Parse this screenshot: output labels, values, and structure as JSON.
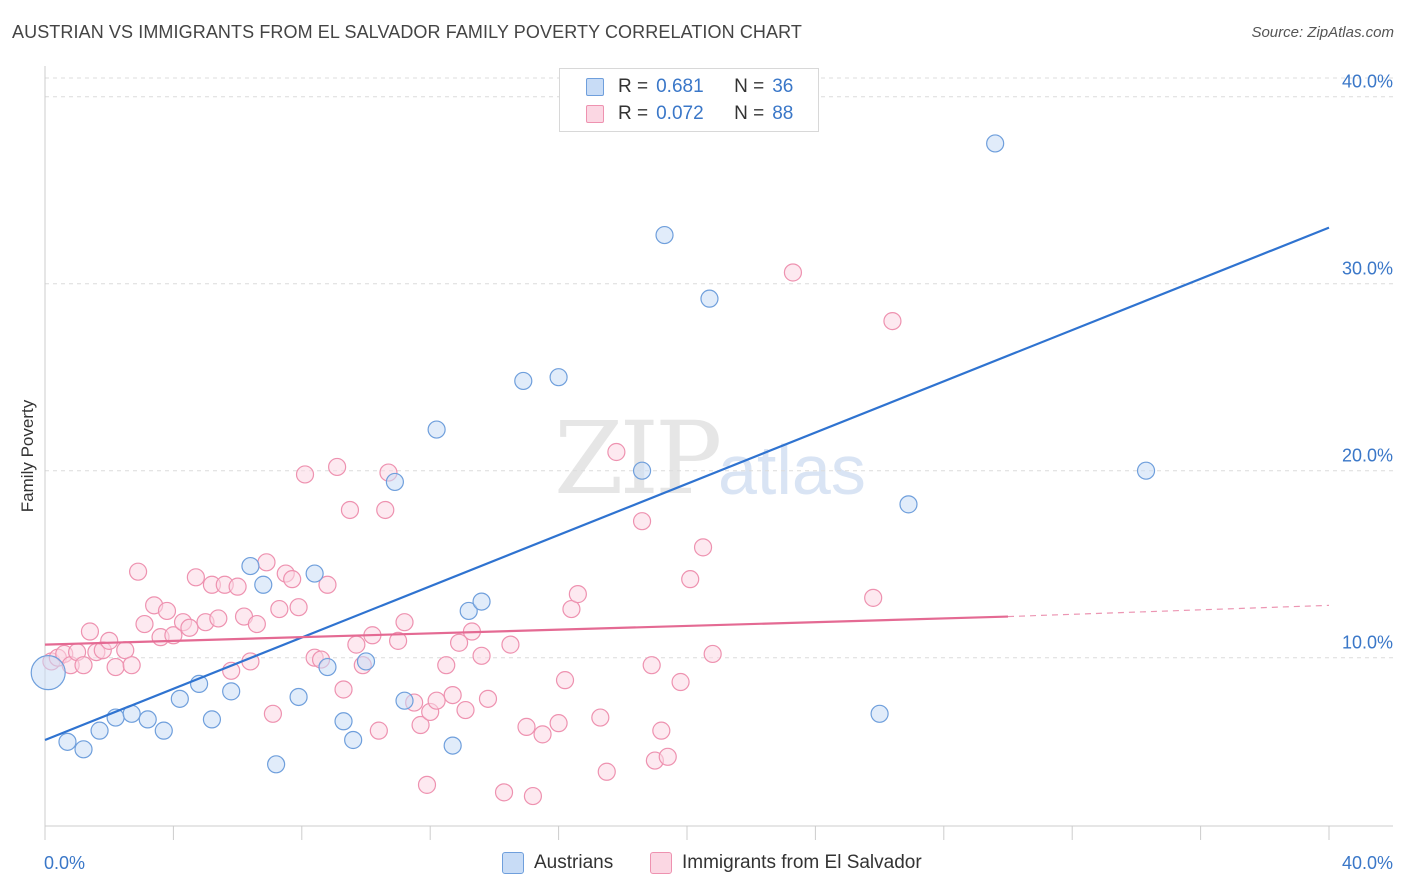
{
  "title": "AUSTRIAN VS IMMIGRANTS FROM EL SALVADOR FAMILY POVERTY CORRELATION CHART",
  "source": "Source: ZipAtlas.com",
  "watermark": {
    "zip": "ZIP",
    "atlas": "atlas"
  },
  "legend_top": {
    "rows": [
      {
        "r_label": "R =",
        "r_value": "0.681",
        "n_label": "N =",
        "n_value": "36",
        "color": "#aac8f0",
        "border": "#6f9fdc"
      },
      {
        "r_label": "R =",
        "r_value": "0.072",
        "n_label": "N =",
        "n_value": "88",
        "color": "#f8c6d6",
        "border": "#ee92b0"
      }
    ]
  },
  "legend_bottom": {
    "items": [
      {
        "label": "Austrians",
        "color": "#c8dcf6",
        "border": "#6f9fdc"
      },
      {
        "label": "Immigrants from El Salvador",
        "color": "#fbd7e3",
        "border": "#ee92b0"
      }
    ]
  },
  "chart_data": {
    "type": "scatter",
    "title": "AUSTRIAN VS IMMIGRANTS FROM EL SALVADOR FAMILY POVERTY CORRELATION CHART",
    "xlabel": "",
    "ylabel": "Family Poverty",
    "xlim": [
      0,
      40
    ],
    "ylim": [
      1,
      41
    ],
    "x_tick_labels": [
      "0.0%",
      "40.0%"
    ],
    "y_ticks": [
      10,
      20,
      30,
      40
    ],
    "y_tick_labels": [
      "10.0%",
      "20.0%",
      "30.0%",
      "40.0%"
    ],
    "grid": "horizontal dashed",
    "legend": "top-center",
    "series": [
      {
        "name": "Austrians",
        "color": "#6f9fdc",
        "fill": "#c8dcf6",
        "trend": {
          "x": [
            0,
            40
          ],
          "y": [
            5.6,
            33.0
          ],
          "color": "#2f73d0"
        },
        "points": [
          [
            0.1,
            9.2
          ],
          [
            0.7,
            5.5
          ],
          [
            1.2,
            5.1
          ],
          [
            1.7,
            6.1
          ],
          [
            2.2,
            6.8
          ],
          [
            2.7,
            7.0
          ],
          [
            3.2,
            6.7
          ],
          [
            3.7,
            6.1
          ],
          [
            4.2,
            7.8
          ],
          [
            4.8,
            8.6
          ],
          [
            5.2,
            6.7
          ],
          [
            5.8,
            8.2
          ],
          [
            6.4,
            14.9
          ],
          [
            6.8,
            13.9
          ],
          [
            7.2,
            4.3
          ],
          [
            7.9,
            7.9
          ],
          [
            8.4,
            14.5
          ],
          [
            8.8,
            9.5
          ],
          [
            9.3,
            6.6
          ],
          [
            9.6,
            5.6
          ],
          [
            10.0,
            9.8
          ],
          [
            10.9,
            19.4
          ],
          [
            11.2,
            7.7
          ],
          [
            12.2,
            22.2
          ],
          [
            12.7,
            5.3
          ],
          [
            13.2,
            12.5
          ],
          [
            13.6,
            13.0
          ],
          [
            14.9,
            24.8
          ],
          [
            16.0,
            25.0
          ],
          [
            18.6,
            20.0
          ],
          [
            19.3,
            32.6
          ],
          [
            20.7,
            29.2
          ],
          [
            26.0,
            7.0
          ],
          [
            26.9,
            18.2
          ],
          [
            29.6,
            37.5
          ],
          [
            34.3,
            20.0
          ]
        ]
      },
      {
        "name": "Immigrants from El Salvador",
        "color": "#ee92b0",
        "fill": "#fbd7e3",
        "trend": {
          "x": [
            0,
            30
          ],
          "y": [
            10.7,
            12.2
          ],
          "dashed_to": [
            40,
            12.8
          ],
          "color": "#e46a93"
        },
        "points": [
          [
            0.2,
            9.8
          ],
          [
            0.4,
            10.0
          ],
          [
            0.6,
            10.2
          ],
          [
            0.8,
            9.6
          ],
          [
            1.0,
            10.3
          ],
          [
            1.2,
            9.6
          ],
          [
            1.4,
            11.4
          ],
          [
            1.6,
            10.3
          ],
          [
            1.8,
            10.4
          ],
          [
            2.0,
            10.9
          ],
          [
            2.2,
            9.5
          ],
          [
            2.5,
            10.4
          ],
          [
            2.7,
            9.6
          ],
          [
            2.9,
            14.6
          ],
          [
            3.1,
            11.8
          ],
          [
            3.4,
            12.8
          ],
          [
            3.6,
            11.1
          ],
          [
            3.8,
            12.5
          ],
          [
            4.0,
            11.2
          ],
          [
            4.3,
            11.9
          ],
          [
            4.5,
            11.6
          ],
          [
            4.7,
            14.3
          ],
          [
            5.0,
            11.9
          ],
          [
            5.2,
            13.9
          ],
          [
            5.4,
            12.1
          ],
          [
            5.6,
            13.9
          ],
          [
            5.8,
            9.3
          ],
          [
            6.0,
            13.8
          ],
          [
            6.2,
            12.2
          ],
          [
            6.4,
            9.8
          ],
          [
            6.6,
            11.8
          ],
          [
            6.9,
            15.1
          ],
          [
            7.1,
            7.0
          ],
          [
            7.3,
            12.6
          ],
          [
            7.5,
            14.5
          ],
          [
            7.7,
            14.2
          ],
          [
            7.9,
            12.7
          ],
          [
            8.1,
            19.8
          ],
          [
            8.4,
            10.0
          ],
          [
            8.6,
            9.9
          ],
          [
            8.8,
            13.9
          ],
          [
            9.1,
            20.2
          ],
          [
            9.3,
            8.3
          ],
          [
            9.5,
            17.9
          ],
          [
            9.7,
            10.7
          ],
          [
            9.9,
            9.6
          ],
          [
            10.2,
            11.2
          ],
          [
            10.4,
            6.1
          ],
          [
            10.6,
            17.9
          ],
          [
            10.7,
            19.9
          ],
          [
            11.0,
            10.9
          ],
          [
            11.2,
            11.9
          ],
          [
            11.5,
            7.6
          ],
          [
            11.7,
            6.4
          ],
          [
            11.9,
            3.2
          ],
          [
            12.0,
            7.1
          ],
          [
            12.2,
            7.7
          ],
          [
            12.5,
            9.6
          ],
          [
            12.7,
            8.0
          ],
          [
            12.9,
            10.8
          ],
          [
            13.1,
            7.2
          ],
          [
            13.3,
            11.4
          ],
          [
            13.6,
            10.1
          ],
          [
            13.8,
            7.8
          ],
          [
            14.3,
            2.8
          ],
          [
            14.5,
            10.7
          ],
          [
            15.0,
            6.3
          ],
          [
            15.2,
            2.6
          ],
          [
            15.5,
            5.9
          ],
          [
            16.0,
            6.5
          ],
          [
            16.2,
            8.8
          ],
          [
            16.4,
            12.6
          ],
          [
            16.6,
            13.4
          ],
          [
            17.5,
            3.9
          ],
          [
            17.3,
            6.8
          ],
          [
            17.8,
            21.0
          ],
          [
            18.6,
            17.3
          ],
          [
            18.9,
            9.6
          ],
          [
            19.0,
            4.5
          ],
          [
            19.2,
            6.1
          ],
          [
            19.4,
            4.7
          ],
          [
            19.8,
            8.7
          ],
          [
            20.1,
            14.2
          ],
          [
            20.5,
            15.9
          ],
          [
            20.8,
            10.2
          ],
          [
            23.3,
            30.6
          ],
          [
            25.8,
            13.2
          ],
          [
            26.4,
            28.0
          ]
        ]
      }
    ]
  }
}
